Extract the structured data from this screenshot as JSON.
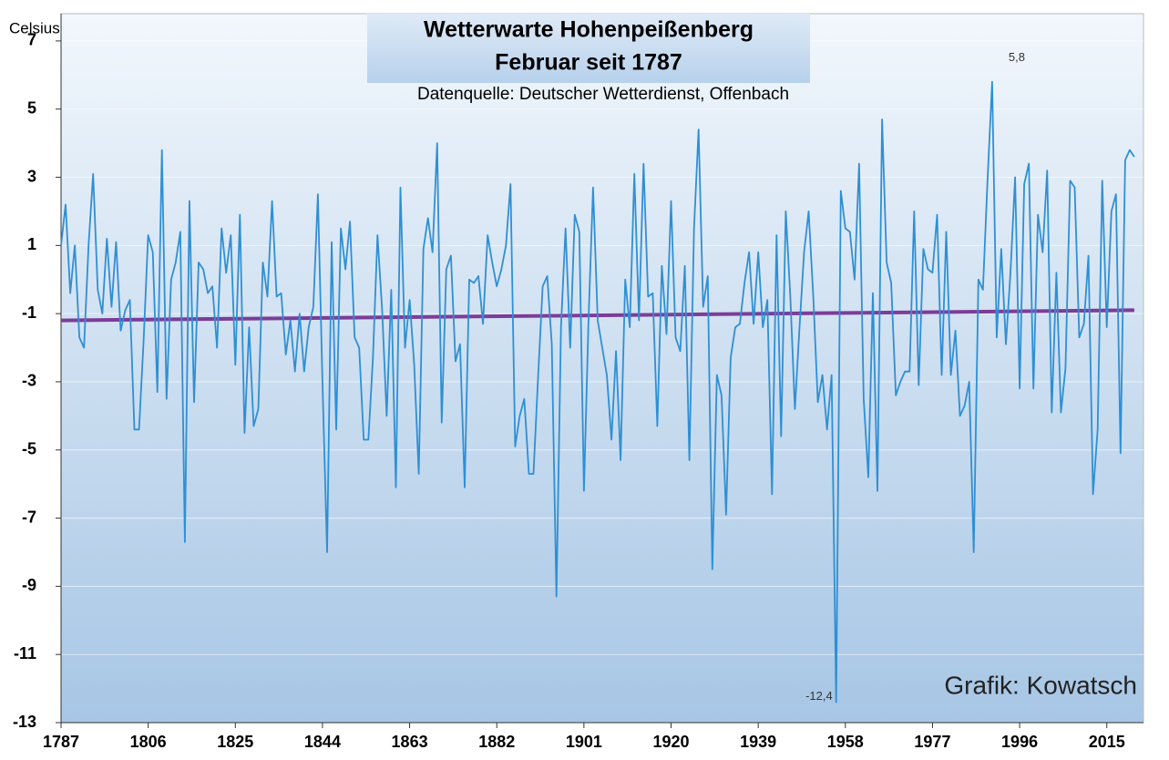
{
  "chart_data": {
    "type": "line",
    "title": "Wetterwarte Hohenpeißenberg",
    "title2": "Februar seit 1787",
    "subtitle": "Datenquelle: Deutscher Wetterdienst, Offenbach",
    "y_label": "Celsius",
    "credit": "Grafik: Kowatsch",
    "x": [
      1787,
      1788,
      1789,
      1790,
      1791,
      1792,
      1793,
      1794,
      1795,
      1796,
      1797,
      1798,
      1799,
      1800,
      1801,
      1802,
      1803,
      1804,
      1805,
      1806,
      1807,
      1808,
      1809,
      1810,
      1811,
      1812,
      1813,
      1814,
      1815,
      1816,
      1817,
      1818,
      1819,
      1820,
      1821,
      1822,
      1823,
      1824,
      1825,
      1826,
      1827,
      1828,
      1829,
      1830,
      1831,
      1832,
      1833,
      1834,
      1835,
      1836,
      1837,
      1838,
      1839,
      1840,
      1841,
      1842,
      1843,
      1844,
      1845,
      1846,
      1847,
      1848,
      1849,
      1850,
      1851,
      1852,
      1853,
      1854,
      1855,
      1856,
      1857,
      1858,
      1859,
      1860,
      1861,
      1862,
      1863,
      1864,
      1865,
      1866,
      1867,
      1868,
      1869,
      1870,
      1871,
      1872,
      1873,
      1874,
      1875,
      1876,
      1877,
      1878,
      1879,
      1880,
      1881,
      1882,
      1883,
      1884,
      1885,
      1886,
      1887,
      1888,
      1889,
      1890,
      1891,
      1892,
      1893,
      1894,
      1895,
      1896,
      1897,
      1898,
      1899,
      1900,
      1901,
      1902,
      1903,
      1904,
      1905,
      1906,
      1907,
      1908,
      1909,
      1910,
      1911,
      1912,
      1913,
      1914,
      1915,
      1916,
      1917,
      1918,
      1919,
      1920,
      1921,
      1922,
      1923,
      1924,
      1925,
      1926,
      1927,
      1928,
      1929,
      1930,
      1931,
      1932,
      1933,
      1934,
      1935,
      1936,
      1937,
      1938,
      1939,
      1940,
      1941,
      1942,
      1943,
      1944,
      1945,
      1946,
      1947,
      1948,
      1949,
      1950,
      1951,
      1952,
      1953,
      1954,
      1955,
      1956,
      1957,
      1958,
      1959,
      1960,
      1961,
      1962,
      1963,
      1964,
      1965,
      1966,
      1967,
      1968,
      1969,
      1970,
      1971,
      1972,
      1973,
      1974,
      1975,
      1976,
      1977,
      1978,
      1979,
      1980,
      1981,
      1982,
      1983,
      1984,
      1985,
      1986,
      1987,
      1988,
      1989,
      1990,
      1991,
      1992,
      1993,
      1994,
      1995,
      1996,
      1997,
      1998,
      1999,
      2000,
      2001,
      2002,
      2003,
      2004,
      2005,
      2006,
      2007,
      2008,
      2009,
      2010,
      2011,
      2012,
      2013,
      2014,
      2015,
      2016,
      2017,
      2018,
      2019,
      2020,
      2021
    ],
    "series": [
      {
        "color": "#2f8fd4",
        "values": [
          1.0,
          2.2,
          -0.4,
          1.0,
          -1.7,
          -2.0,
          1.0,
          3.1,
          -0.3,
          -1.0,
          1.2,
          -0.8,
          1.1,
          -1.5,
          -0.9,
          -0.6,
          -4.4,
          -4.4,
          -1.8,
          1.3,
          0.8,
          -3.3,
          3.8,
          -3.5,
          0.0,
          0.5,
          1.4,
          -7.7,
          2.3,
          -3.6,
          0.5,
          0.3,
          -0.4,
          -0.2,
          -2.0,
          1.5,
          0.2,
          1.3,
          -2.5,
          1.9,
          -4.5,
          -1.4,
          -4.3,
          -3.8,
          0.5,
          -0.5,
          2.3,
          -0.5,
          -0.4,
          -2.2,
          -1.2,
          -2.7,
          -1.0,
          -2.7,
          -1.4,
          -0.8,
          2.5,
          -3.0,
          -8.0,
          1.1,
          -4.4,
          1.5,
          0.3,
          1.7,
          -1.7,
          -2.0,
          -4.7,
          -4.7,
          -2.3,
          1.3,
          -0.9,
          -4.0,
          -0.3,
          -6.1,
          2.7,
          -2.0,
          -0.6,
          -2.5,
          -5.7,
          0.9,
          1.8,
          0.8,
          4.0,
          -4.2,
          0.3,
          0.7,
          -2.4,
          -1.9,
          -6.1,
          0.0,
          -0.1,
          0.1,
          -1.3,
          1.3,
          0.5,
          -0.2,
          0.3,
          1.0,
          2.8,
          -4.9,
          -4.0,
          -3.5,
          -5.7,
          -5.7,
          -2.9,
          -0.2,
          0.1,
          -1.9,
          -9.3,
          -1.4,
          1.5,
          -2.0,
          1.9,
          1.4,
          -6.2,
          -1.2,
          2.7,
          -1.2,
          -2.0,
          -2.8,
          -4.7,
          -2.1,
          -5.3,
          0.0,
          -1.4,
          3.1,
          -1.2,
          3.4,
          -0.5,
          -0.4,
          -4.3,
          0.4,
          -1.6,
          2.3,
          -1.7,
          -2.1,
          0.4,
          -5.3,
          1.5,
          4.4,
          -0.8,
          0.1,
          -8.5,
          -2.8,
          -3.4,
          -6.9,
          -2.3,
          -1.4,
          -1.3,
          -0.1,
          0.8,
          -1.3,
          0.8,
          -1.4,
          -0.6,
          -6.3,
          1.3,
          -4.6,
          2.0,
          -0.5,
          -3.8,
          -1.4,
          0.8,
          2.0,
          -0.5,
          -3.6,
          -2.8,
          -4.4,
          -2.8,
          -12.4,
          2.6,
          1.5,
          1.4,
          0.0,
          3.4,
          -3.5,
          -5.8,
          -0.4,
          -6.2,
          4.7,
          0.5,
          -0.1,
          -3.4,
          -3.0,
          -2.7,
          -2.7,
          2.0,
          -3.1,
          0.9,
          0.3,
          0.2,
          1.9,
          -2.8,
          1.4,
          -2.8,
          -1.5,
          -4.0,
          -3.7,
          -3.0,
          -8.0,
          0.0,
          -0.3,
          2.9,
          5.8,
          -1.7,
          0.9,
          -1.9,
          0.2,
          3.0,
          -3.2,
          2.8,
          3.4,
          -3.2,
          1.9,
          0.8,
          3.2,
          -3.9,
          0.2,
          -3.9,
          -2.6,
          2.9,
          2.7,
          -1.7,
          -1.3,
          0.7,
          -6.3,
          -4.4,
          2.9,
          -1.4,
          2.0,
          2.5,
          -5.1,
          3.5,
          3.8,
          3.6
        ]
      }
    ],
    "trend": {
      "color": "#7d3c98",
      "x": [
        1787,
        2021
      ],
      "values": [
        -1.2,
        -0.9
      ]
    },
    "annotations": [
      {
        "text": "5,8",
        "x": 1990,
        "y": 5.8
      },
      {
        "text": "-12,4",
        "x": 1956,
        "y": -12.4
      }
    ],
    "xlim": [
      1787,
      2023
    ],
    "xticks": [
      1787,
      1806,
      1825,
      1844,
      1863,
      1882,
      1901,
      1920,
      1939,
      1958,
      1977,
      1996,
      2015
    ],
    "ylim": [
      -13,
      7.8
    ],
    "yticks": [
      7,
      5,
      3,
      1,
      -1,
      -3,
      -5,
      -7,
      -9,
      -11,
      -13
    ],
    "grid": true
  }
}
